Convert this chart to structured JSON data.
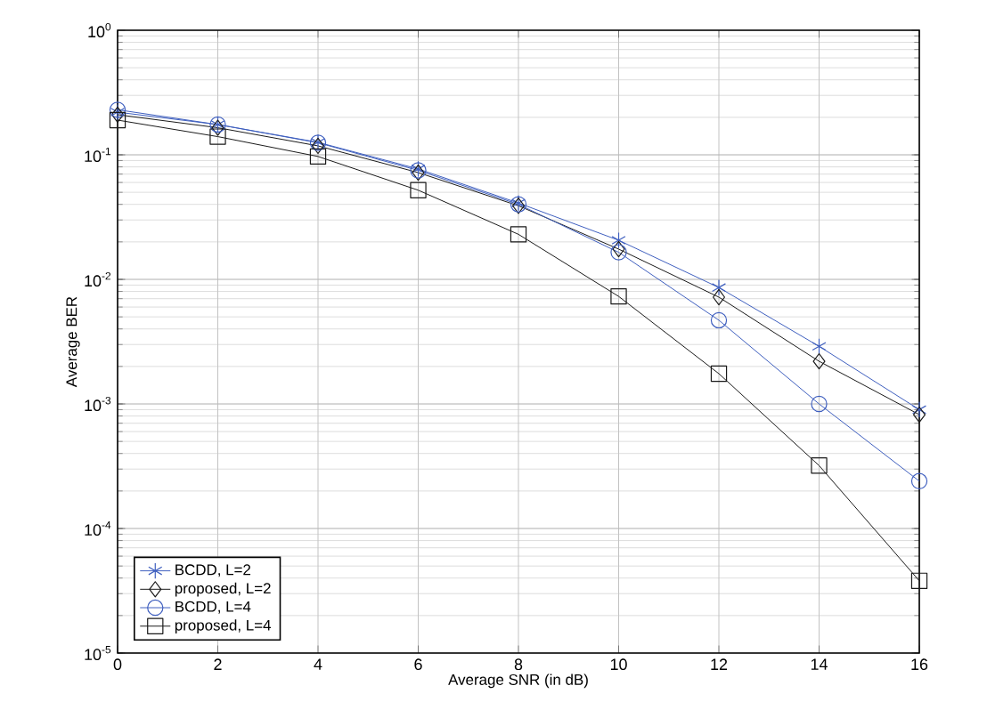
{
  "chart_data": {
    "type": "line",
    "xlabel": "Average SNR (in dB)",
    "ylabel": "Average BER",
    "x": [
      0,
      2,
      4,
      6,
      8,
      10,
      12,
      14,
      16
    ],
    "series": [
      {
        "name": "BCDD, L=2",
        "color": "#3f5fbf",
        "marker": "cross",
        "values": [
          0.22,
          0.175,
          0.126,
          0.077,
          0.041,
          0.0206,
          0.0086,
          0.0029,
          0.0009
        ]
      },
      {
        "name": "proposed, L=2",
        "color": "#1a1a1a",
        "marker": "diamond",
        "values": [
          0.21,
          0.165,
          0.118,
          0.072,
          0.039,
          0.0175,
          0.0072,
          0.0022,
          0.00082
        ]
      },
      {
        "name": "BCDD, L=4",
        "color": "#3f5fbf",
        "marker": "circle",
        "values": [
          0.23,
          0.175,
          0.125,
          0.075,
          0.04,
          0.0165,
          0.0047,
          0.001,
          0.00024
        ]
      },
      {
        "name": "proposed, L=4",
        "color": "#1a1a1a",
        "marker": "square",
        "values": [
          0.19,
          0.14,
          0.097,
          0.052,
          0.023,
          0.0073,
          0.00175,
          0.00032,
          3.8e-05
        ]
      }
    ],
    "log": "y",
    "xlim": [
      0,
      16
    ],
    "ylim": [
      1e-05,
      1
    ],
    "xticks": [
      0,
      2,
      4,
      6,
      8,
      10,
      12,
      14,
      16
    ],
    "yticks": [
      {
        "value": 1e-05,
        "label": "10$^{-5}$"
      },
      {
        "value": 0.0001,
        "label": "10$^{-4}$"
      },
      {
        "value": 0.001,
        "label": "10$^{-3}$"
      },
      {
        "value": 0.01,
        "label": "10$^{-2}$"
      },
      {
        "value": 0.1,
        "label": "10$^{-1}$"
      },
      {
        "value": 1,
        "label": "10$^{0}$"
      }
    ],
    "grid": true,
    "legend": "bottom left",
    "line_style": "solid"
  }
}
